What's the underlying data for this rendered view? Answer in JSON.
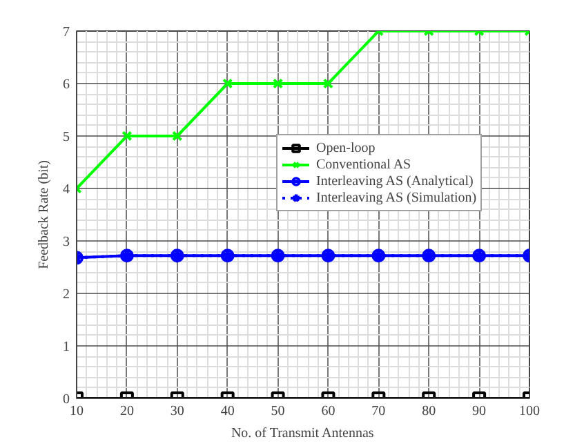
{
  "chart_data": {
    "type": "line",
    "xlabel": "No. of Transmit Antennas",
    "ylabel": "Feedback Rate (bit)",
    "x": [
      10,
      20,
      30,
      40,
      50,
      60,
      70,
      80,
      90,
      100
    ],
    "xlim": [
      10,
      100
    ],
    "xticks": [
      10,
      20,
      30,
      40,
      50,
      60,
      70,
      80,
      90,
      100
    ],
    "ylim": [
      0,
      7
    ],
    "yticks": [
      0,
      1,
      2,
      3,
      4,
      5,
      6,
      7
    ],
    "grid": true,
    "legend": "right",
    "series": [
      {
        "name": "Open-loop",
        "color": "#000000",
        "marker": "square",
        "line_style": "solid",
        "values": [
          0,
          0,
          0,
          0,
          0,
          0,
          0,
          0,
          0,
          0
        ]
      },
      {
        "name": "Conventional AS",
        "color": "#00ff00",
        "marker": "cross",
        "line_style": "solid",
        "values": [
          4,
          5,
          5,
          6,
          6,
          6,
          7,
          7,
          7,
          7
        ]
      },
      {
        "name": "Interleaving AS (Analytical)",
        "color": "#0000ff",
        "marker": "circle",
        "line_style": "solid",
        "values": [
          2.68,
          2.72,
          2.72,
          2.72,
          2.72,
          2.72,
          2.72,
          2.72,
          2.72,
          2.72
        ]
      },
      {
        "name": "Interleaving AS (Simulation)",
        "color": "#0000ff",
        "marker": "star",
        "line_style": "dotted",
        "values": [
          2.68,
          2.72,
          2.72,
          2.72,
          2.72,
          2.72,
          2.72,
          2.72,
          2.72,
          2.72
        ]
      }
    ]
  }
}
